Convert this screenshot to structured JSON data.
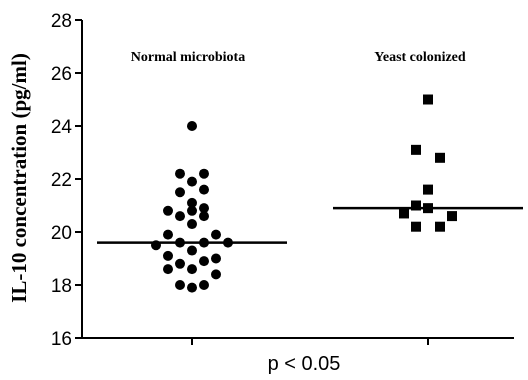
{
  "chart_data": {
    "type": "scatter",
    "title": "",
    "ylabel": "IL-10 concentration (pg/ml)",
    "xlabel": "p < 0.05",
    "ylim": [
      16,
      28
    ],
    "yticks": [
      16,
      18,
      20,
      22,
      24,
      26,
      28
    ],
    "grid": false,
    "categories": [
      "Normal microbiota",
      "Yeast colonized"
    ],
    "series": [
      {
        "name": "Normal microbiota",
        "marker": "circle",
        "median": 19.6,
        "points": [
          {
            "offset": 0,
            "y": 24.0
          },
          {
            "offset": -1,
            "y": 22.2
          },
          {
            "offset": 1,
            "y": 22.2
          },
          {
            "offset": 0,
            "y": 21.9
          },
          {
            "offset": -1,
            "y": 21.5
          },
          {
            "offset": 1,
            "y": 21.6
          },
          {
            "offset": 0,
            "y": 21.1
          },
          {
            "offset": 1,
            "y": 20.9
          },
          {
            "offset": -2,
            "y": 20.8
          },
          {
            "offset": 0,
            "y": 20.8
          },
          {
            "offset": -1,
            "y": 20.6
          },
          {
            "offset": 1,
            "y": 20.6
          },
          {
            "offset": 0,
            "y": 20.3
          },
          {
            "offset": -2,
            "y": 19.9
          },
          {
            "offset": 2,
            "y": 19.9
          },
          {
            "offset": -1,
            "y": 19.6
          },
          {
            "offset": 1,
            "y": 19.6
          },
          {
            "offset": -3,
            "y": 19.5
          },
          {
            "offset": 3,
            "y": 19.6
          },
          {
            "offset": 0,
            "y": 19.3
          },
          {
            "offset": -2,
            "y": 19.1
          },
          {
            "offset": 2,
            "y": 19.0
          },
          {
            "offset": -1,
            "y": 18.8
          },
          {
            "offset": 1,
            "y": 18.9
          },
          {
            "offset": 0,
            "y": 18.6
          },
          {
            "offset": -2,
            "y": 18.6
          },
          {
            "offset": 2,
            "y": 18.4
          },
          {
            "offset": -1,
            "y": 18.0
          },
          {
            "offset": 0,
            "y": 17.9
          },
          {
            "offset": 1,
            "y": 18.0
          }
        ]
      },
      {
        "name": "Yeast colonized",
        "marker": "square",
        "median": 20.9,
        "points": [
          {
            "offset": 0,
            "y": 25.0
          },
          {
            "offset": -1,
            "y": 23.1
          },
          {
            "offset": 1,
            "y": 22.8
          },
          {
            "offset": 0,
            "y": 21.6
          },
          {
            "offset": -1,
            "y": 21.0
          },
          {
            "offset": 0,
            "y": 20.9
          },
          {
            "offset": -2,
            "y": 20.7
          },
          {
            "offset": 2,
            "y": 20.6
          },
          {
            "offset": -1,
            "y": 20.2
          },
          {
            "offset": 1,
            "y": 20.2
          }
        ]
      }
    ]
  }
}
